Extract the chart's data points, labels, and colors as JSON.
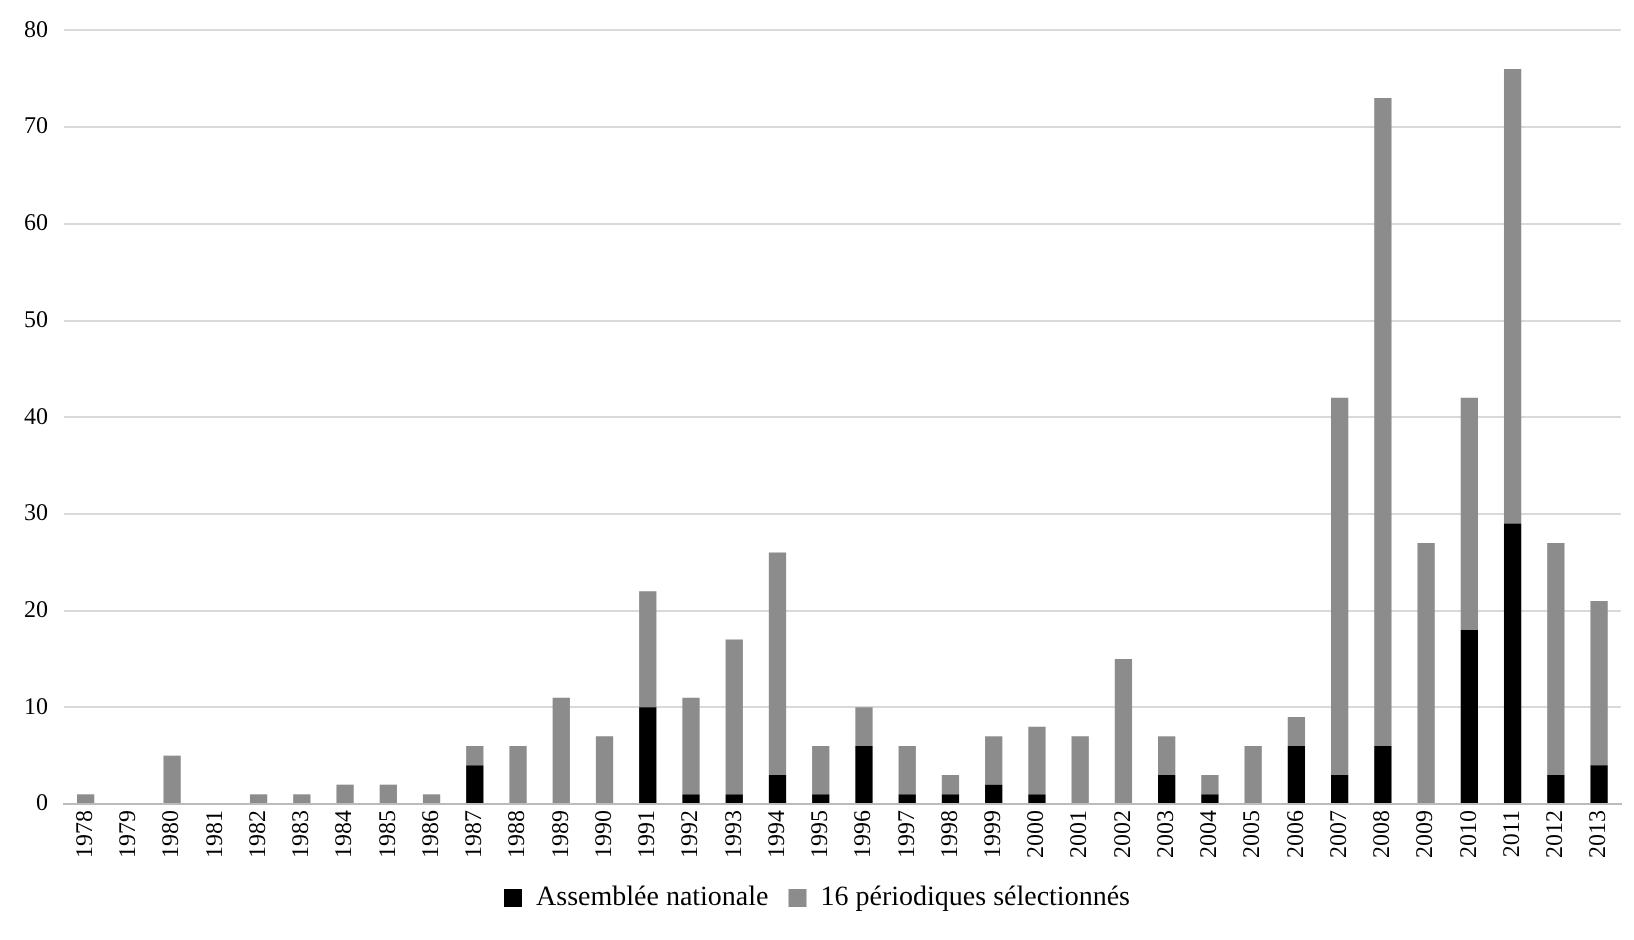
{
  "chart_data": {
    "type": "bar",
    "stacked": true,
    "categories": [
      "1978",
      "1979",
      "1980",
      "1981",
      "1982",
      "1983",
      "1984",
      "1985",
      "1986",
      "1987",
      "1988",
      "1989",
      "1990",
      "1991",
      "1992",
      "1993",
      "1994",
      "1995",
      "1996",
      "1997",
      "1998",
      "1999",
      "2000",
      "2001",
      "2002",
      "2003",
      "2004",
      "2005",
      "2006",
      "2007",
      "2008",
      "2009",
      "2010",
      "2011",
      "2012",
      "2013"
    ],
    "series": [
      {
        "name": "Assemblée nationale",
        "color": "#000000",
        "values": [
          0,
          0,
          0,
          0,
          0,
          0,
          0,
          0,
          0,
          4,
          0,
          0,
          0,
          10,
          1,
          1,
          3,
          1,
          6,
          1,
          1,
          2,
          1,
          0,
          0,
          3,
          1,
          0,
          6,
          3,
          6,
          0,
          18,
          29,
          3,
          4
        ]
      },
      {
        "name": "16 périodiques sélectionnés",
        "color": "#8c8c8c",
        "values": [
          1,
          0,
          5,
          0,
          1,
          1,
          2,
          2,
          1,
          2,
          6,
          11,
          7,
          12,
          10,
          16,
          23,
          5,
          4,
          5,
          2,
          5,
          7,
          7,
          15,
          4,
          2,
          6,
          3,
          39,
          67,
          27,
          24,
          47,
          24,
          17
        ]
      }
    ],
    "ylim": [
      0,
      80
    ],
    "yticks": [
      0,
      10,
      20,
      30,
      40,
      50,
      60,
      70,
      80
    ],
    "grid": "y",
    "legend": "bottom"
  }
}
